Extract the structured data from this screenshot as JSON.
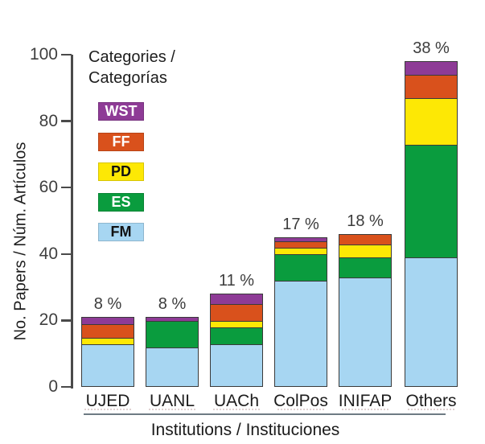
{
  "figure": {
    "ylabel": "No. Papers / Núm. Artículos",
    "xlabel_title": "Institutions / Instituciones",
    "legend_title_line1": "Categories /",
    "legend_title_line2": "Categorías"
  },
  "chart_data": {
    "type": "bar",
    "stacked": true,
    "xlabel": "Institutions / Instituciones",
    "ylabel": "No. Papers / Núm. Artículos",
    "ylim": [
      0,
      100
    ],
    "yticks": [
      0,
      20,
      40,
      60,
      80,
      100
    ],
    "grid": false,
    "legend_position": "upper-left-inside",
    "categories": [
      "UJED",
      "UANL",
      "UACh",
      "ColPos",
      "INIFAP",
      "Others"
    ],
    "bar_percent_labels": [
      "8 %",
      "8 %",
      "11 %",
      "17 %",
      "18 %",
      "38 %"
    ],
    "totals": [
      21,
      21,
      28,
      45,
      46,
      98
    ],
    "series": [
      {
        "name": "FM",
        "color": "#a7d6f2",
        "text_color": "#111111",
        "values": [
          13,
          12,
          13,
          32,
          33,
          39
        ]
      },
      {
        "name": "ES",
        "color": "#0a9c3e",
        "text_color": "#ffffff",
        "values": [
          0,
          8,
          5,
          8,
          6,
          34
        ]
      },
      {
        "name": "PD",
        "color": "#fde805",
        "text_color": "#111111",
        "values": [
          2,
          0,
          2,
          2,
          4,
          14
        ]
      },
      {
        "name": "FF",
        "color": "#d9511c",
        "text_color": "#ffffff",
        "values": [
          4,
          0,
          5,
          2,
          3,
          7
        ]
      },
      {
        "name": "WST",
        "color": "#8e3b96",
        "text_color": "#ffffff",
        "values": [
          2,
          1,
          3,
          1,
          0,
          4
        ]
      }
    ],
    "legend_order_top_to_bottom": [
      "WST",
      "FF",
      "PD",
      "ES",
      "FM"
    ],
    "colors": {
      "axis": "#4a4a4a",
      "bar_border": "#3a3a3a",
      "separator_line": "#6e7b84"
    }
  }
}
